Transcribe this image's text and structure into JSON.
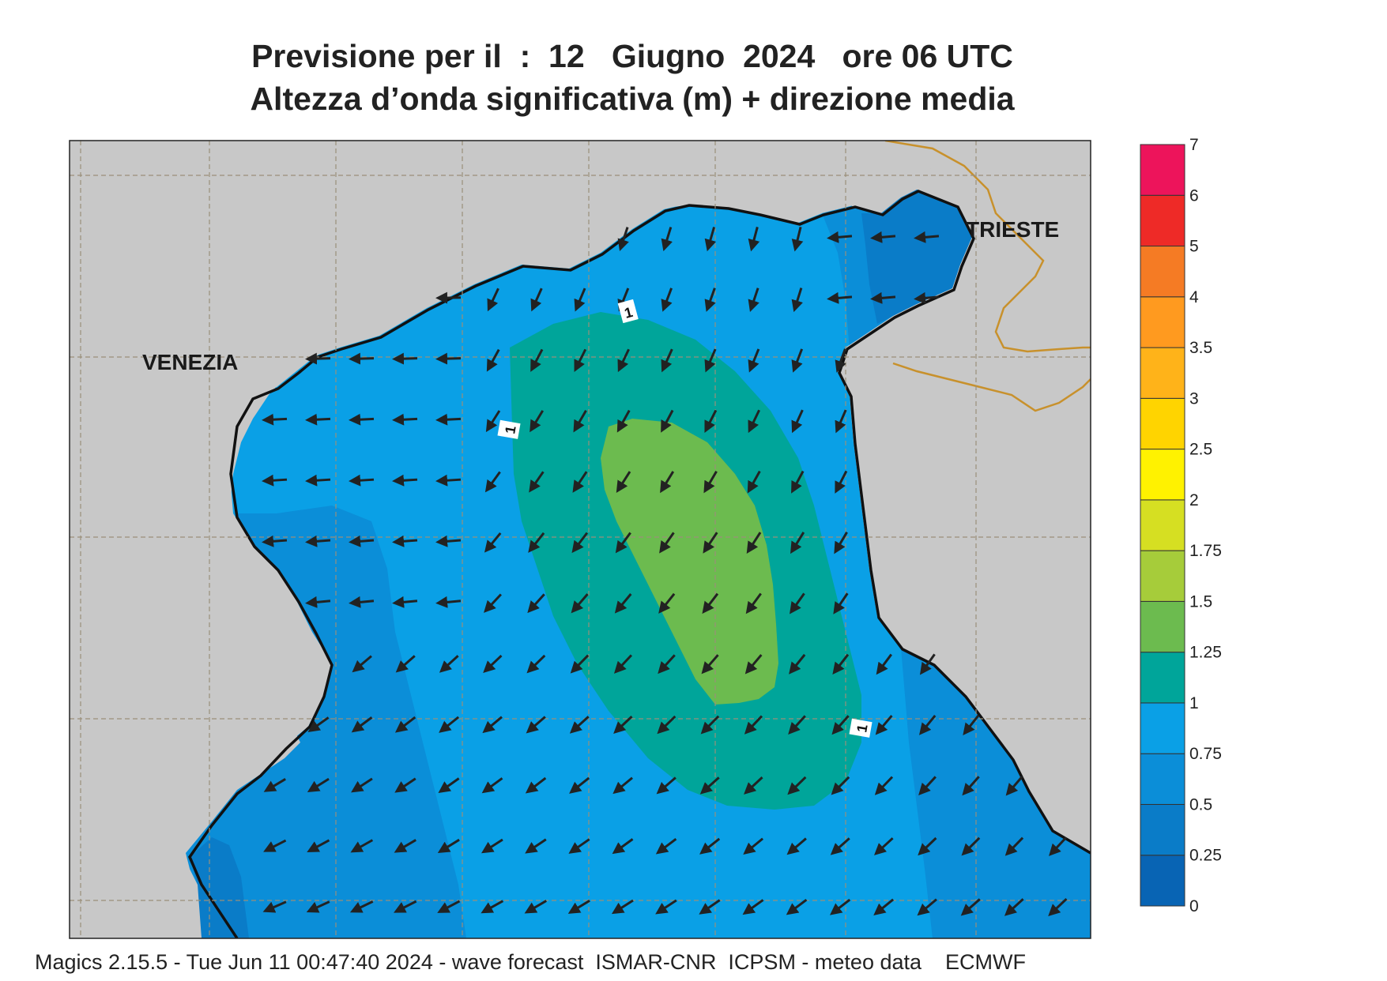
{
  "title_line1": "Previsione per il  :  12   Giugno  2024   ore 06 UTC",
  "title_line2": "Altezza d’onda significativa (m) + direzione media",
  "cities": [
    {
      "name": "VENEZIA"
    },
    {
      "name": "TRIESTE"
    }
  ],
  "contour_label": "1",
  "legend": {
    "labels": [
      "0",
      "0.25",
      "0.5",
      "0.75",
      "1",
      "1.25",
      "1.5",
      "1.75",
      "2",
      "2.5",
      "3",
      "3.5",
      "4",
      "5",
      "6",
      "7"
    ],
    "colors": [
      "#0864b4",
      "#0a7cc8",
      "#0b8ed8",
      "#0aa0e6",
      "#00a59a",
      "#6cbb4f",
      "#a6cc3a",
      "#d6df22",
      "#fff200",
      "#ffd400",
      "#ffb319",
      "#ff9a1f",
      "#f57b24",
      "#ee2a27",
      "#ed145b"
    ]
  },
  "colors": {
    "land": "#c8c8c8",
    "sea_025": "#0a7cc8",
    "sea_05": "#0b8ed8",
    "sea_075": "#0aa0e6",
    "sea_1": "#00a59a",
    "sea_125": "#6cbb4f",
    "border": "#c8912c"
  },
  "footer": "Magics 2.15.5 - Tue Jun 11 00:47:40 2024 - wave forecast  ISMAR-CNR  ICPSM - meteo data    ECMWF"
}
